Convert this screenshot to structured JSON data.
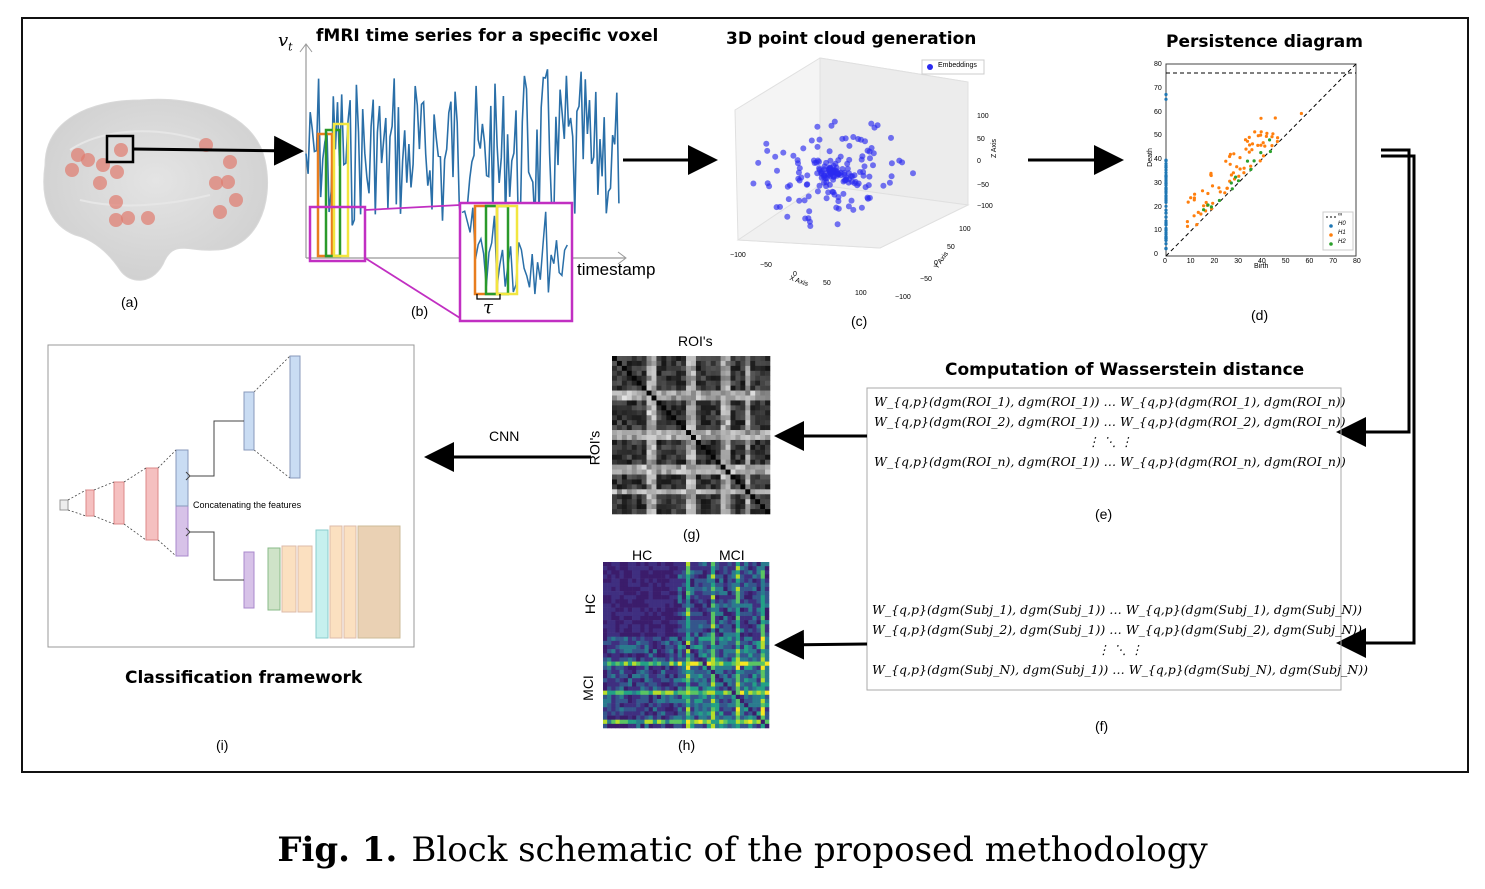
{
  "panels": {
    "a": {
      "label": "(a)"
    },
    "b": {
      "title": "fMRI time series for a specific voxel",
      "label": "(b)",
      "y_axis": "v",
      "y_sub": "t",
      "x_axis": "timestamp",
      "tau": "τ"
    },
    "c": {
      "title": "3D point cloud generation",
      "label": "(c)",
      "legend": "Embeddings",
      "x_axis": "X Axis",
      "y_axis": "Y Axis",
      "z_axis": "Z Axis",
      "x_ticks": [
        "−100",
        "−50",
        "0",
        "50",
        "100"
      ],
      "y_ticks": [
        "100",
        "50",
        "0",
        "−50",
        "−100"
      ],
      "z_ticks": [
        "100",
        "50",
        "0",
        "−50",
        "−100"
      ]
    },
    "d": {
      "title": "Persistence diagram",
      "label": "(d)",
      "x_axis": "Birth",
      "y_axis": "Death",
      "x_ticks": [
        "0",
        "10",
        "20",
        "30",
        "40",
        "50",
        "60",
        "70",
        "80"
      ],
      "y_ticks": [
        "0",
        "10",
        "20",
        "30",
        "40",
        "50",
        "60",
        "70",
        "80"
      ],
      "legend": [
        "∞",
        "H0",
        "H1",
        "H2"
      ]
    },
    "e": {
      "title": "Computation of Wasserstein distance",
      "label": "(e)",
      "rows": [
        "W_{q,p}(dgm(ROI_1), dgm(ROI_1)) … W_{q,p}(dgm(ROI_1), dgm(ROI_n))",
        "W_{q,p}(dgm(ROI_2), dgm(ROI_1)) … W_{q,p}(dgm(ROI_2), dgm(ROI_n))",
        "⋮ ⋱ ⋮",
        "W_{q,p}(dgm(ROI_n), dgm(ROI_1)) … W_{q,p}(dgm(ROI_n), dgm(ROI_n))"
      ]
    },
    "f": {
      "label": "(f)",
      "rows": [
        "W_{q,p}(dgm(Subj_1), dgm(Subj_1)) … W_{q,p}(dgm(Subj_1), dgm(Subj_N))",
        "W_{q,p}(dgm(Subj_2), dgm(Subj_1)) … W_{q,p}(dgm(Subj_2), dgm(Subj_N))",
        "⋮ ⋱ ⋮",
        "W_{q,p}(dgm(Subj_N), dgm(Subj_1)) … W_{q,p}(dgm(Subj_N), dgm(Subj_N))"
      ]
    },
    "g": {
      "label": "(g)",
      "top": "ROI's",
      "side": "ROI's"
    },
    "h": {
      "label": "(h)",
      "hc": "HC",
      "mci": "MCI"
    },
    "i": {
      "label": "(i)",
      "title": "Classification framework",
      "concat": "Concatenating the features",
      "cnn": "CNN"
    }
  },
  "caption": {
    "prefix": "Fig. 1.",
    "text": "Block schematic of the proposed methodology"
  },
  "colors": {
    "series": "#2a6fa8",
    "magenta": "#c12fc2",
    "orange": "#e87d1e",
    "green": "#2a9a2a",
    "yellow": "#f2e640",
    "points": "#2b2bf0",
    "brain_dot": "#e07a6e"
  }
}
